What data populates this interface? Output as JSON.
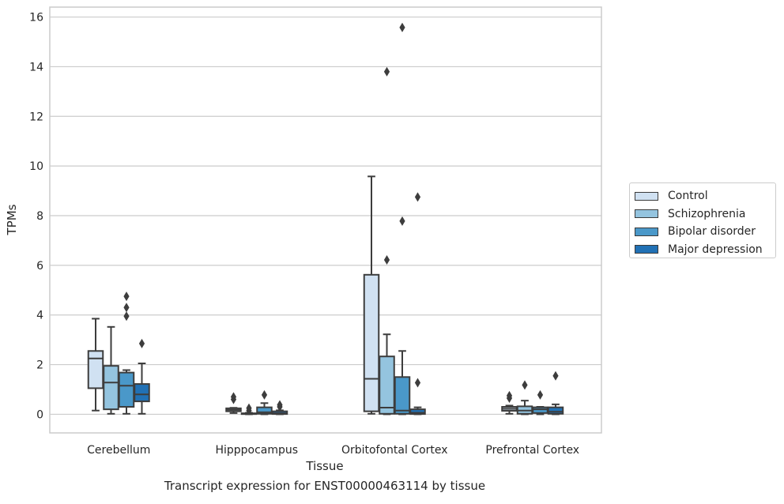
{
  "chart_data": {
    "type": "box",
    "title": "",
    "xlabel": "Tissue",
    "ylabel": "TPMs",
    "caption": "Transcript expression for ENST00000463114 by tissue",
    "ylim": [
      -0.75,
      16.4
    ],
    "yticks": [
      0,
      2,
      4,
      6,
      8,
      10,
      12,
      14,
      16
    ],
    "grid": "horizontal",
    "legend_position": "right",
    "categories": [
      "Cerebellum",
      "Hipppocampus",
      "Orbitofontal Cortex",
      "Prefrontal Cortex"
    ],
    "series": [
      {
        "name": "Control",
        "color": "#d0e1f2",
        "boxes": [
          {
            "whislo": 0.15,
            "q1": 1.05,
            "med": 2.25,
            "q3": 2.55,
            "whishi": 3.85,
            "fliers": []
          },
          {
            "whislo": 0.05,
            "q1": 0.12,
            "med": 0.18,
            "q3": 0.24,
            "whishi": 0.26,
            "fliers": [
              0.6,
              0.7
            ]
          },
          {
            "whislo": 0.02,
            "q1": 0.12,
            "med": 1.43,
            "q3": 5.62,
            "whishi": 9.58,
            "fliers": []
          },
          {
            "whislo": 0.02,
            "q1": 0.14,
            "med": 0.22,
            "q3": 0.3,
            "whishi": 0.35,
            "fliers": [
              0.65,
              0.75
            ]
          }
        ]
      },
      {
        "name": "Schizophrenia",
        "color": "#94c4df",
        "boxes": [
          {
            "whislo": 0.02,
            "q1": 0.2,
            "med": 1.28,
            "q3": 1.95,
            "whishi": 3.52,
            "fliers": []
          },
          {
            "whislo": 0.0,
            "q1": 0.01,
            "med": 0.02,
            "q3": 0.04,
            "whishi": 0.06,
            "fliers": [
              0.15,
              0.25
            ]
          },
          {
            "whislo": 0.0,
            "q1": 0.02,
            "med": 0.27,
            "q3": 2.33,
            "whishi": 3.22,
            "fliers": [
              6.22,
              13.8
            ]
          },
          {
            "whislo": 0.0,
            "q1": 0.02,
            "med": 0.15,
            "q3": 0.32,
            "whishi": 0.55,
            "fliers": [
              1.18
            ]
          }
        ]
      },
      {
        "name": "Bipolar disorder",
        "color": "#4a98c9",
        "boxes": [
          {
            "whislo": 0.02,
            "q1": 0.3,
            "med": 1.15,
            "q3": 1.68,
            "whishi": 1.78,
            "fliers": [
              3.95,
              4.3,
              4.75
            ]
          },
          {
            "whislo": 0.0,
            "q1": 0.02,
            "med": 0.08,
            "q3": 0.28,
            "whishi": 0.45,
            "fliers": [
              0.78
            ]
          },
          {
            "whislo": 0.0,
            "q1": 0.02,
            "med": 0.15,
            "q3": 1.5,
            "whishi": 2.55,
            "fliers": [
              7.78,
              15.58
            ]
          },
          {
            "whislo": 0.0,
            "q1": 0.05,
            "med": 0.2,
            "q3": 0.28,
            "whishi": 0.3,
            "fliers": [
              0.78
            ]
          }
        ]
      },
      {
        "name": "Major depression",
        "color": "#2171b5",
        "boxes": [
          {
            "whislo": 0.02,
            "q1": 0.52,
            "med": 0.8,
            "q3": 1.22,
            "whishi": 2.05,
            "fliers": [
              2.85
            ]
          },
          {
            "whislo": 0.0,
            "q1": 0.01,
            "med": 0.04,
            "q3": 0.12,
            "whishi": 0.16,
            "fliers": [
              0.3,
              0.38
            ]
          },
          {
            "whislo": 0.0,
            "q1": 0.01,
            "med": 0.06,
            "q3": 0.2,
            "whishi": 0.28,
            "fliers": [
              1.27,
              8.75
            ]
          },
          {
            "whislo": 0.0,
            "q1": 0.02,
            "med": 0.1,
            "q3": 0.28,
            "whishi": 0.4,
            "fliers": [
              1.55
            ]
          }
        ]
      }
    ]
  }
}
